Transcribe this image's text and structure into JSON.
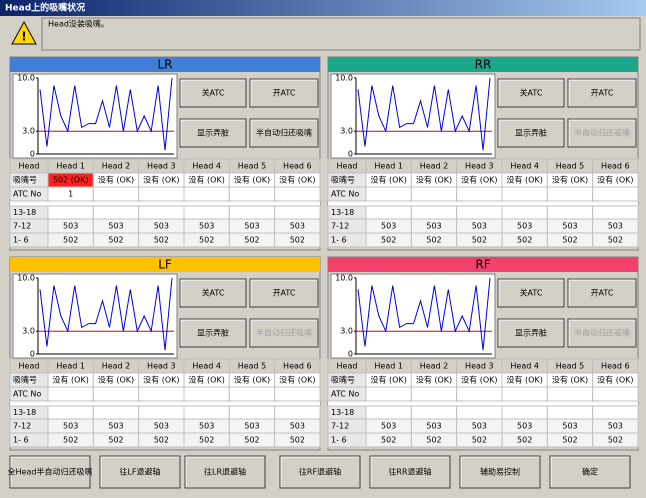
{
  "window": {
    "title": "Head上的吸嘴状况",
    "message": "Head没装吸嘴。"
  },
  "panels": [
    {
      "title": "LR",
      "color": "#3f7fd8",
      "x": "left",
      "y": "top",
      "chart_data": {
        "type": "line",
        "ylim": [
          0,
          10
        ],
        "yticks": [
          {
            "value": 10,
            "label": "10.0"
          },
          {
            "value": 3,
            "label": "3.0"
          },
          0
        ],
        "threshold": 3,
        "threshold_color": "#e00000",
        "series": [
          {
            "color": "#0000e0",
            "values": [
              8.5,
              1,
              9,
              5,
              3,
              9,
              3.5,
              4,
              4,
              7,
              3.5,
              9,
              3,
              8.5,
              3,
              5,
              3,
              9,
              0.5,
              10
            ]
          }
        ]
      },
      "buttons": [
        "关ATC",
        "开ATC",
        "显示弄脏",
        "半自动归还吸嘴"
      ],
      "semi_auto_enabled": true,
      "table": {
        "header": [
          "Head",
          "Head 1",
          "Head 2",
          "Head 3",
          "Head 4",
          "Head 5",
          "Head 6"
        ],
        "rows": [
          [
            "吸嘴号",
            "502 (OK)",
            "没有 (OK)",
            "没有 (OK)",
            "没有 (OK)",
            "没有 (OK)",
            "没有 (OK)"
          ],
          [
            "ATC No",
            "1",
            null,
            null,
            null,
            null,
            null
          ],
          [
            "13-18",
            null,
            null,
            null,
            null,
            null,
            null
          ],
          [
            "7-12",
            "503",
            "503",
            "503",
            "503",
            "503",
            "503"
          ],
          [
            "1- 6",
            "502",
            "502",
            "502",
            "502",
            "502",
            "502"
          ]
        ],
        "highlight": {
          "row": 0,
          "col": 1,
          "color": "#ff2020"
        }
      }
    },
    {
      "title": "RR",
      "color": "#1aa88a",
      "x": "right",
      "y": "top",
      "chart_data": {
        "type": "line",
        "ylim": [
          0,
          10
        ],
        "yticks": [
          {
            "value": 10,
            "label": "10.0"
          },
          {
            "value": 3,
            "label": "3.0"
          },
          0
        ],
        "threshold": 3,
        "threshold_color": "#e00000",
        "series": [
          {
            "color": "#0000e0",
            "values": [
              8.5,
              1,
              9,
              5,
              3,
              9,
              3.5,
              4,
              4,
              7,
              3.5,
              9,
              3,
              8.5,
              3,
              5,
              3,
              9,
              0.5,
              10
            ]
          }
        ]
      },
      "buttons": [
        "关ATC",
        "开ATC",
        "显示弄脏",
        "半自动归还吸嘴"
      ],
      "semi_auto_enabled": false,
      "table": {
        "header": [
          "Head",
          "Head 1",
          "Head 2",
          "Head 3",
          "Head 4",
          "Head 5",
          "Head 6"
        ],
        "rows": [
          [
            "吸嘴号",
            "没有 (OK)",
            "没有 (OK)",
            "没有 (OK)",
            "没有 (OK)",
            "没有 (OK)",
            "没有 (OK)"
          ],
          [
            "ATC No",
            null,
            null,
            null,
            null,
            null,
            null
          ],
          [
            "13-18",
            null,
            null,
            null,
            null,
            null,
            null
          ],
          [
            "7-12",
            "503",
            "503",
            "503",
            "503",
            "503",
            "503"
          ],
          [
            "1- 6",
            "502",
            "502",
            "502",
            "502",
            "502",
            "502"
          ]
        ]
      }
    },
    {
      "title": "LF",
      "color": "#ffc000",
      "x": "left",
      "y": "bottom",
      "chart_data": {
        "type": "line",
        "ylim": [
          0,
          10
        ],
        "yticks": [
          {
            "value": 10,
            "label": "10.0"
          },
          {
            "value": 3,
            "label": "3.0"
          },
          0
        ],
        "threshold": 3,
        "threshold_color": "#e00000",
        "series": [
          {
            "color": "#0000e0",
            "values": [
              8.5,
              1,
              9,
              5,
              3,
              9,
              3.5,
              4,
              4,
              7,
              3.5,
              9,
              3,
              8.5,
              3,
              5,
              3,
              9,
              0.5,
              10
            ]
          }
        ]
      },
      "buttons": [
        "关ATC",
        "开ATC",
        "显示弄脏",
        "半自动归还吸嘴"
      ],
      "semi_auto_enabled": false,
      "table": {
        "header": [
          "Head",
          "Head 1",
          "Head 2",
          "Head 3",
          "Head 4",
          "Head 5",
          "Head 6"
        ],
        "rows": [
          [
            "吸嘴号",
            "没有 (OK)",
            "没有 (OK)",
            "没有 (OK)",
            "没有 (OK)",
            "没有 (OK)",
            "没有 (OK)"
          ],
          [
            "ATC No",
            null,
            null,
            null,
            null,
            null,
            null
          ],
          [
            "13-18",
            null,
            null,
            null,
            null,
            null,
            null
          ],
          [
            "7-12",
            "503",
            "503",
            "503",
            "503",
            "503",
            "503"
          ],
          [
            "1- 6",
            "502",
            "502",
            "502",
            "502",
            "502",
            "502"
          ]
        ]
      }
    },
    {
      "title": "RF",
      "color": "#f2426c",
      "x": "right",
      "y": "bottom",
      "chart_data": {
        "type": "line",
        "ylim": [
          0,
          10
        ],
        "yticks": [
          {
            "value": 10,
            "label": "10.0"
          },
          {
            "value": 3,
            "label": "3.0"
          },
          0
        ],
        "threshold": 3,
        "threshold_color": "#e00000",
        "series": [
          {
            "color": "#0000e0",
            "values": [
              8.5,
              1,
              9,
              5,
              3,
              9,
              3.5,
              4,
              4,
              7,
              3.5,
              9,
              3,
              8.5,
              3,
              5,
              3,
              9,
              0.5,
              10
            ]
          }
        ]
      },
      "buttons": [
        "关ATC",
        "开ATC",
        "显示弄脏",
        "半自动归还吸嘴"
      ],
      "semi_auto_enabled": false,
      "table": {
        "header": [
          "Head",
          "Head 1",
          "Head 2",
          "Head 3",
          "Head 4",
          "Head 5",
          "Head 6"
        ],
        "rows": [
          [
            "吸嘴号",
            "没有 (OK)",
            "没有 (OK)",
            "没有 (OK)",
            "没有 (OK)",
            "没有 (OK)",
            "没有 (OK)"
          ],
          [
            "ATC No",
            null,
            null,
            null,
            null,
            null,
            null
          ],
          [
            "13-18",
            null,
            null,
            null,
            null,
            null,
            null
          ],
          [
            "7-12",
            "503",
            "503",
            "503",
            "503",
            "503",
            "503"
          ],
          [
            "1- 6",
            "502",
            "502",
            "502",
            "502",
            "502",
            "502"
          ]
        ]
      }
    }
  ],
  "footer_buttons": [
    "全Head半自动归还吸嘴",
    "往LF退避轴",
    "往LR退避轴",
    "往RF退避轴",
    "往RR退避轴",
    "辅助易控制",
    "确定"
  ]
}
